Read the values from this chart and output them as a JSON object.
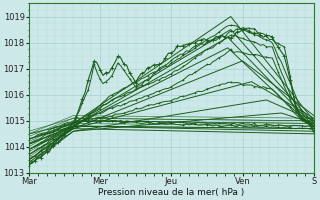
{
  "xlabel": "Pression niveau de la mer( hPa )",
  "bg_color": "#cce8e8",
  "grid_major_color": "#aad4d4",
  "grid_minor_color": "#bcdede",
  "line_color": "#1a5c1a",
  "ylim": [
    1013.0,
    1019.5
  ],
  "xlim": [
    0,
    96
  ],
  "day_labels": [
    "Mar",
    "Mer",
    "Jeu",
    "Ven",
    "S"
  ],
  "day_positions": [
    0,
    24,
    48,
    72,
    96
  ],
  "figsize": [
    3.2,
    2.0
  ],
  "dpi": 100
}
